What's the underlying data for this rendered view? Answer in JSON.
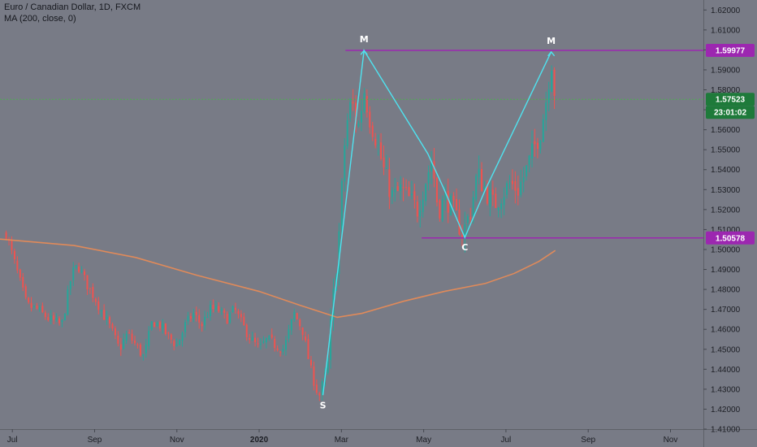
{
  "header": {
    "symbol_line": "Euro / Canadian Dollar, 1D, FXCM",
    "indicator_line": "MA (200, close, 0)"
  },
  "colors": {
    "background": "#787b86",
    "bull": "#26a69a",
    "bear": "#ef5350",
    "ma": "#e08a5a",
    "pattern": "#4fe3f0",
    "level_line": "#9c27b0",
    "last_price_line": "#4caf50",
    "badge_green": "#1e7a3a"
  },
  "chart_data": {
    "type": "candlestick",
    "title": "Euro / Canadian Dollar, 1D, FXCM",
    "ylim": [
      1.41,
      1.625
    ],
    "y_ticks": [
      "1.62000",
      "1.61000",
      "1.60000",
      "1.59000",
      "1.58000",
      "1.57000",
      "1.56000",
      "1.55000",
      "1.54000",
      "1.53000",
      "1.52000",
      "1.51000",
      "1.50000",
      "1.49000",
      "1.48000",
      "1.47000",
      "1.46000",
      "1.45000",
      "1.44000",
      "1.43000",
      "1.42000",
      "1.41000"
    ],
    "x_ticks": [
      {
        "label": "Jul",
        "x": 0.0
      },
      {
        "label": "Sep",
        "x": 2.0
      },
      {
        "label": "Nov",
        "x": 4.0
      },
      {
        "label": "2020",
        "x": 6.0,
        "bold": true
      },
      {
        "label": "Mar",
        "x": 8.0
      },
      {
        "label": "May",
        "x": 10.0
      },
      {
        "label": "Jul",
        "x": 12.0
      },
      {
        "label": "Sep",
        "x": 14.0
      },
      {
        "label": "Nov",
        "x": 16.0
      }
    ],
    "xlim": [
      -0.3,
      16.8
    ],
    "closes": [
      {
        "x": -0.15,
        "c": 1.508
      },
      {
        "x": 0.1,
        "c": 1.49
      },
      {
        "x": 0.35,
        "c": 1.472
      },
      {
        "x": 0.6,
        "c": 1.47
      },
      {
        "x": 0.9,
        "c": 1.465
      },
      {
        "x": 1.2,
        "c": 1.462
      },
      {
        "x": 1.45,
        "c": 1.488
      },
      {
        "x": 1.6,
        "c": 1.492
      },
      {
        "x": 1.8,
        "c": 1.483
      },
      {
        "x": 2.0,
        "c": 1.476
      },
      {
        "x": 2.2,
        "c": 1.468
      },
      {
        "x": 2.4,
        "c": 1.46
      },
      {
        "x": 2.6,
        "c": 1.45
      },
      {
        "x": 2.8,
        "c": 1.458
      },
      {
        "x": 3.0,
        "c": 1.452
      },
      {
        "x": 3.2,
        "c": 1.446
      },
      {
        "x": 3.4,
        "c": 1.464
      },
      {
        "x": 3.6,
        "c": 1.462
      },
      {
        "x": 3.8,
        "c": 1.456
      },
      {
        "x": 4.0,
        "c": 1.452
      },
      {
        "x": 4.2,
        "c": 1.462
      },
      {
        "x": 4.4,
        "c": 1.468
      },
      {
        "x": 4.6,
        "c": 1.462
      },
      {
        "x": 4.8,
        "c": 1.47
      },
      {
        "x": 5.0,
        "c": 1.47
      },
      {
        "x": 5.2,
        "c": 1.465
      },
      {
        "x": 5.4,
        "c": 1.47
      },
      {
        "x": 5.6,
        "c": 1.462
      },
      {
        "x": 5.8,
        "c": 1.455
      },
      {
        "x": 6.0,
        "c": 1.45
      },
      {
        "x": 6.2,
        "c": 1.455
      },
      {
        "x": 6.4,
        "c": 1.452
      },
      {
        "x": 6.6,
        "c": 1.45
      },
      {
        "x": 6.85,
        "c": 1.468
      },
      {
        "x": 7.05,
        "c": 1.46
      },
      {
        "x": 7.25,
        "c": 1.44
      },
      {
        "x": 7.45,
        "c": 1.426
      },
      {
        "x": 7.65,
        "c": 1.44
      },
      {
        "x": 7.8,
        "c": 1.475
      },
      {
        "x": 7.95,
        "c": 1.51
      },
      {
        "x": 8.1,
        "c": 1.56
      },
      {
        "x": 8.25,
        "c": 1.575
      },
      {
        "x": 8.4,
        "c": 1.56
      },
      {
        "x": 8.55,
        "c": 1.58
      },
      {
        "x": 8.7,
        "c": 1.565
      },
      {
        "x": 8.85,
        "c": 1.555
      },
      {
        "x": 9.05,
        "c": 1.538
      },
      {
        "x": 9.25,
        "c": 1.526
      },
      {
        "x": 9.45,
        "c": 1.53
      },
      {
        "x": 9.65,
        "c": 1.525
      },
      {
        "x": 9.85,
        "c": 1.52
      },
      {
        "x": 10.05,
        "c": 1.535
      },
      {
        "x": 10.2,
        "c": 1.545
      },
      {
        "x": 10.35,
        "c": 1.52
      },
      {
        "x": 10.55,
        "c": 1.526
      },
      {
        "x": 10.75,
        "c": 1.518
      },
      {
        "x": 10.95,
        "c": 1.508
      },
      {
        "x": 11.15,
        "c": 1.52
      },
      {
        "x": 11.3,
        "c": 1.538
      },
      {
        "x": 11.5,
        "c": 1.53
      },
      {
        "x": 11.7,
        "c": 1.522
      },
      {
        "x": 11.9,
        "c": 1.528
      },
      {
        "x": 12.1,
        "c": 1.533
      },
      {
        "x": 12.3,
        "c": 1.53
      },
      {
        "x": 12.5,
        "c": 1.54
      },
      {
        "x": 12.7,
        "c": 1.552
      },
      {
        "x": 12.85,
        "c": 1.56
      },
      {
        "x": 13.0,
        "c": 1.578
      },
      {
        "x": 13.1,
        "c": 1.596
      },
      {
        "x": 13.2,
        "c": 1.575
      }
    ],
    "moving_average": {
      "name": "MA (200, close, 0)",
      "points": [
        [
          -0.3,
          1.5052
        ],
        [
          1.5,
          1.502
        ],
        [
          3.0,
          1.496
        ],
        [
          4.5,
          1.487
        ],
        [
          6.0,
          1.479
        ],
        [
          7.0,
          1.472
        ],
        [
          7.9,
          1.466
        ],
        [
          8.5,
          1.468
        ],
        [
          9.5,
          1.474
        ],
        [
          10.5,
          1.479
        ],
        [
          11.5,
          1.483
        ],
        [
          12.2,
          1.488
        ],
        [
          12.8,
          1.494
        ],
        [
          13.2,
          1.4995
        ]
      ]
    },
    "pattern": {
      "points": [
        {
          "label": "S",
          "x": 7.55,
          "y": 1.427
        },
        {
          "label": "M",
          "x": 8.55,
          "y": 1.5997
        },
        {
          "label": "C",
          "x": 11.0,
          "y": 1.506
        },
        {
          "label": "M",
          "x": 13.1,
          "y": 1.599
        }
      ],
      "vertices": [
        [
          7.55,
          1.427
        ],
        [
          8.55,
          1.5997
        ],
        [
          10.1,
          1.548
        ],
        [
          10.5,
          1.53
        ],
        [
          11.0,
          1.506
        ],
        [
          11.5,
          1.53
        ],
        [
          13.1,
          1.599
        ]
      ]
    },
    "levels": [
      {
        "value": 1.59977,
        "label": "1.59977",
        "x_start": 8.1
      },
      {
        "value": 1.50578,
        "label": "1.50578",
        "x_start": 9.95
      }
    ],
    "last_price": {
      "value": 1.57523,
      "label": "1.57523",
      "countdown": "23:01:02"
    }
  }
}
